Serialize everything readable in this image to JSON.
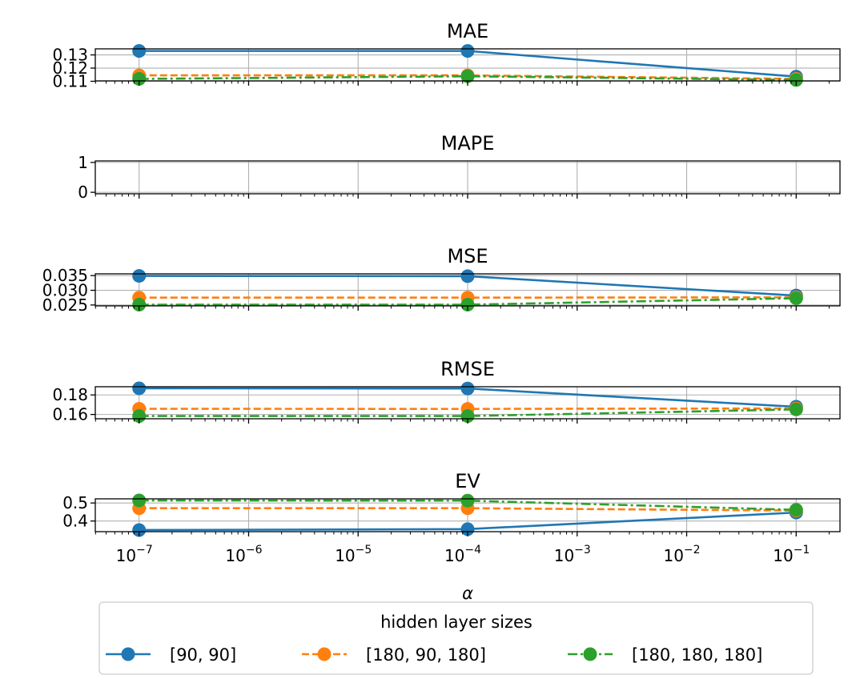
{
  "chart_data": {
    "type": "line",
    "shared_x": {
      "label": "α",
      "scale": "log",
      "ticks": [
        1e-07,
        1e-06,
        1e-05,
        0.0001,
        0.001,
        0.01,
        0.1
      ],
      "tick_labels": [
        {
          "base": "10",
          "exp": "−7"
        },
        {
          "base": "10",
          "exp": "−6"
        },
        {
          "base": "10",
          "exp": "−5"
        },
        {
          "base": "10",
          "exp": "−4"
        },
        {
          "base": "10",
          "exp": "−3"
        },
        {
          "base": "10",
          "exp": "−2"
        },
        {
          "base": "10",
          "exp": "−1"
        }
      ]
    },
    "x": [
      1e-07,
      0.0001,
      0.1
    ],
    "series_styles": [
      {
        "color": "#1f77b4",
        "dash": "solid"
      },
      {
        "color": "#ff7f0e",
        "dash": "dashed"
      },
      {
        "color": "#2ca02c",
        "dash": "dashdot"
      }
    ],
    "legend": {
      "title": "hidden layer sizes",
      "placement": "bottom-center",
      "entries": [
        "[90, 90]",
        "[180, 90, 180]",
        "[180, 180, 180]"
      ]
    },
    "grid": true,
    "panels": [
      {
        "title": "MAE",
        "ylim": [
          0.1103,
          0.1346
        ],
        "yticks": [
          0.11,
          0.12,
          0.13
        ],
        "ytick_labels": [
          "0.11",
          "0.12",
          "0.13"
        ],
        "series": [
          {
            "values": [
              0.133,
              0.133,
              0.1135
            ]
          },
          {
            "values": [
              0.1145,
              0.1145,
              0.1118
            ]
          },
          {
            "values": [
              0.1118,
              0.1138,
              0.111
            ]
          }
        ]
      },
      {
        "title": "MAPE",
        "ylim": [
          -0.05,
          1.05
        ],
        "yticks": [
          0,
          1
        ],
        "ytick_labels": [
          "0",
          "1"
        ],
        "series": [
          {
            "values": [
              null,
              null,
              null
            ]
          },
          {
            "values": [
              null,
              null,
              null
            ]
          },
          {
            "values": [
              null,
              null,
              null
            ]
          }
        ]
      },
      {
        "title": "MSE",
        "ylim": [
          0.0247,
          0.0356
        ],
        "yticks": [
          0.025,
          0.03,
          0.035
        ],
        "ytick_labels": [
          "0.025",
          "0.030",
          "0.035"
        ],
        "series": [
          {
            "values": [
              0.0349,
              0.0348,
              0.0282
            ]
          },
          {
            "values": [
              0.0275,
              0.0275,
              0.0276
            ]
          },
          {
            "values": [
              0.0251,
              0.0251,
              0.0273
            ]
          }
        ]
      },
      {
        "title": "RMSE",
        "ylim": [
          0.1556,
          0.1884
        ],
        "yticks": [
          0.16,
          0.18
        ],
        "ytick_labels": [
          "0.16",
          "0.18"
        ],
        "series": [
          {
            "values": [
              0.1868,
              0.1866,
              0.1679
            ]
          },
          {
            "values": [
              0.1658,
              0.1657,
              0.1662
            ]
          },
          {
            "values": [
              0.1584,
              0.1584,
              0.1652
            ]
          }
        ]
      },
      {
        "title": "EV",
        "ylim": [
          0.341,
          0.523
        ],
        "yticks": [
          0.4,
          0.5
        ],
        "ytick_labels": [
          "0.4",
          "0.5"
        ],
        "series": [
          {
            "values": [
              0.35,
              0.355,
              0.447
            ]
          },
          {
            "values": [
              0.471,
              0.471,
              0.458
            ]
          },
          {
            "values": [
              0.514,
              0.513,
              0.462
            ]
          }
        ]
      }
    ]
  }
}
